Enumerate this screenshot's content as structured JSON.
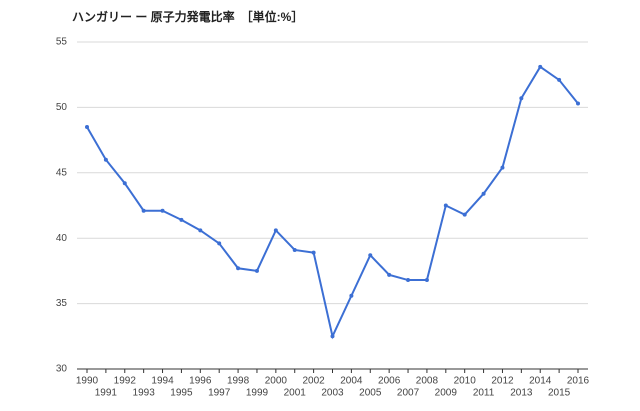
{
  "chart_data": {
    "type": "line",
    "title": "ハンガリー ー 原子力発電比率　［単位:%］",
    "x": [
      1990,
      1991,
      1992,
      1993,
      1994,
      1995,
      1996,
      1997,
      1998,
      1999,
      2000,
      2001,
      2002,
      2003,
      2004,
      2005,
      2006,
      2007,
      2008,
      2009,
      2010,
      2011,
      2012,
      2013,
      2014,
      2015,
      2016
    ],
    "values": [
      48.5,
      46.0,
      44.2,
      42.1,
      42.1,
      41.4,
      40.6,
      39.6,
      37.7,
      37.5,
      40.6,
      39.1,
      38.9,
      32.5,
      35.6,
      38.7,
      37.2,
      36.8,
      36.8,
      42.5,
      41.8,
      43.4,
      45.4,
      50.7,
      53.1,
      52.1,
      50.3
    ],
    "color": "#3c6fd4",
    "xlim": [
      1990,
      2016
    ],
    "xticks": [
      1990,
      1991,
      1992,
      1993,
      1994,
      1995,
      1996,
      1997,
      1998,
      1999,
      2000,
      2001,
      2002,
      2003,
      2004,
      2005,
      2006,
      2007,
      2008,
      2009,
      2010,
      2011,
      2012,
      2013,
      2014,
      2015,
      2016
    ],
    "ylim": [
      30,
      55
    ],
    "yticks": [
      30,
      35,
      40,
      45,
      50,
      55
    ],
    "grid": true
  }
}
